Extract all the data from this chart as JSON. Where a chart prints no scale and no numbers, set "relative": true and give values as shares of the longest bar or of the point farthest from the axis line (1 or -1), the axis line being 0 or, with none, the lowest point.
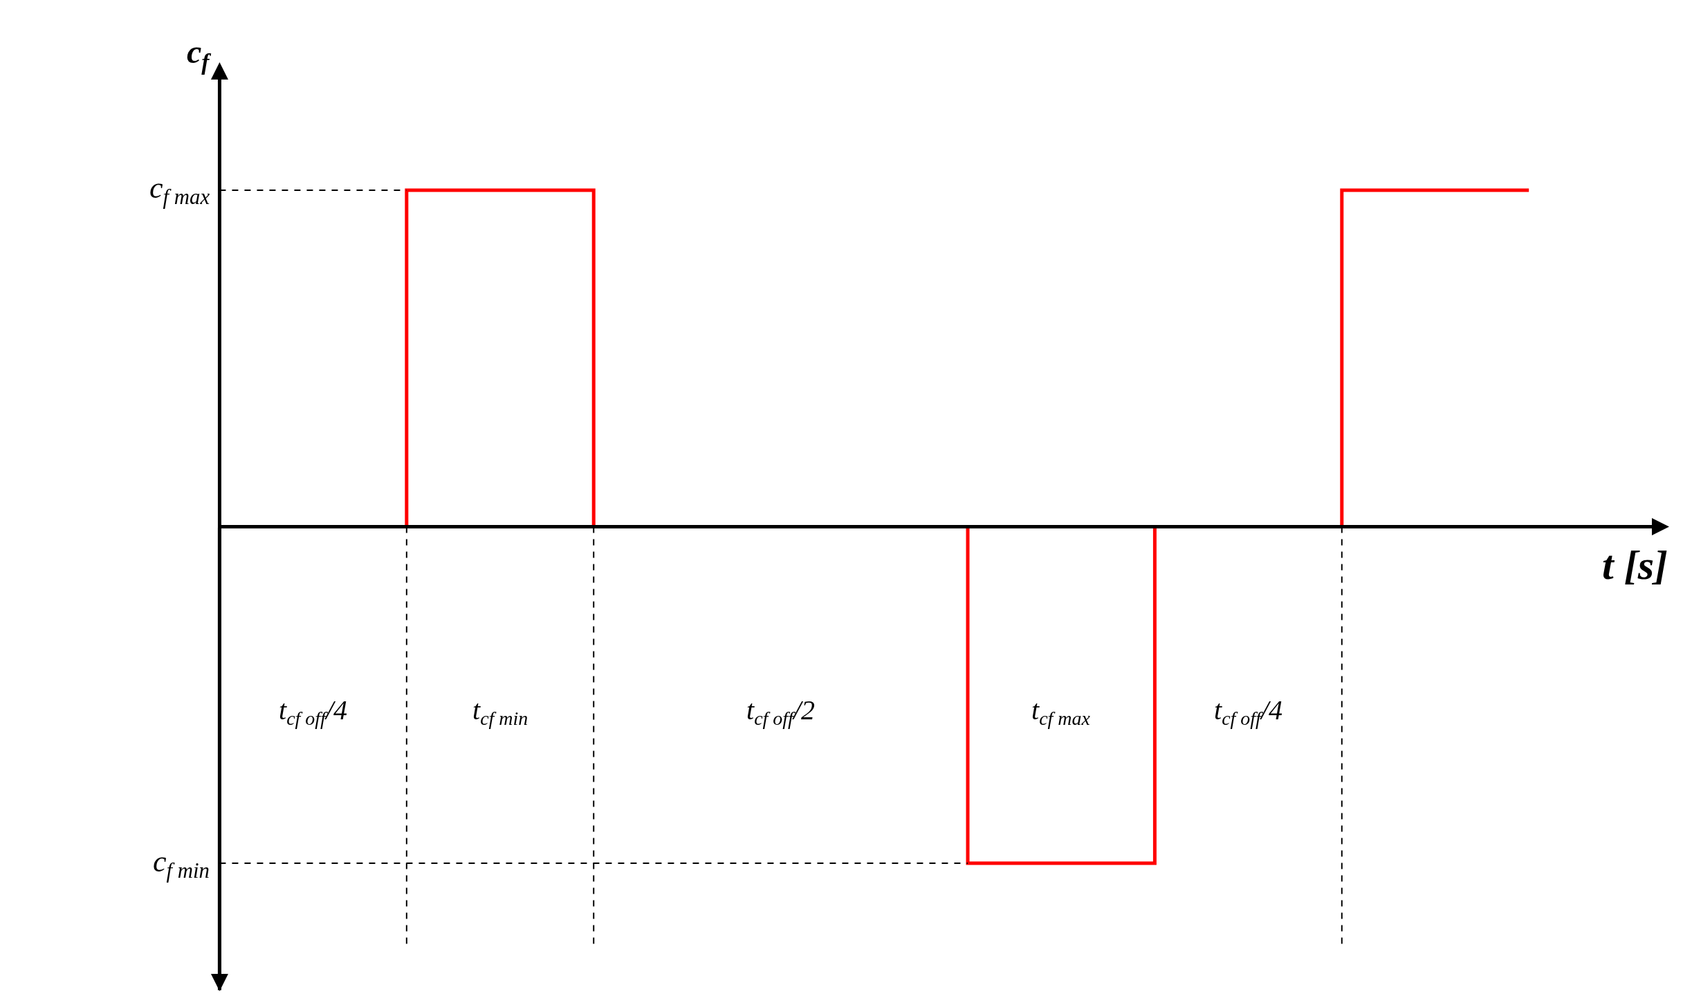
{
  "chart_data": {
    "type": "step",
    "relative": true,
    "ylabel": "c$_{f}$",
    "xlabel": "t [s]",
    "categories": [
      null,
      null,
      null,
      null,
      null,
      null,
      null,
      null
    ],
    "values": [
      0,
      1,
      0,
      0,
      -1,
      0,
      1,
      1
    ],
    "color": "#ff0000",
    "ref_lines": [
      {
        "axis": "y",
        "value": 1,
        "label": "c$_{f max}$",
        "line_style": "dashed",
        "color": "#000000"
      },
      {
        "axis": "y",
        "value": -1,
        "label": "c$_{f min}$",
        "line_style": "dashed",
        "color": "#000000"
      }
    ],
    "annotations": [
      "t$_{cf off}$/4",
      "t$_{cf min}$",
      "t$_{cf off}$/2",
      "t$_{cf max}$",
      "t$_{cf off}$/4"
    ]
  }
}
